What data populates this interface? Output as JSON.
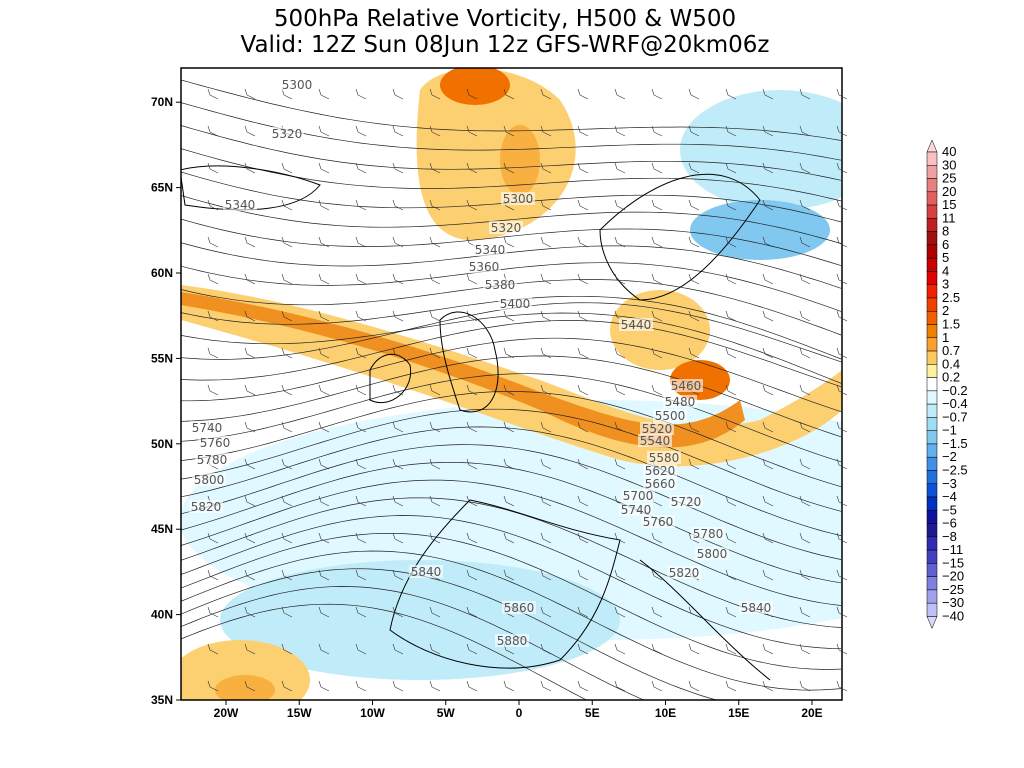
{
  "title": [
    "500hPa Relative Vorticity, H500 & W500",
    "Valid: 12Z Sun 08Jun 12z GFS-WRF@20km06z"
  ],
  "lat_labels": [
    "35N",
    "40N",
    "45N",
    "50N",
    "55N",
    "60N",
    "65N",
    "70N"
  ],
  "lon_labels": [
    "20W",
    "15W",
    "10W",
    "5W",
    "0",
    "5E",
    "10E",
    "15E",
    "20E"
  ],
  "contour_labels": [
    "5300",
    "5320",
    "5340",
    "5300",
    "5320",
    "5340",
    "5360",
    "5380",
    "5400",
    "5440",
    "5460",
    "5480",
    "5500",
    "5520",
    "5540",
    "5580",
    "5620",
    "5660",
    "5700",
    "5720",
    "5740",
    "5760",
    "5780",
    "5800",
    "5820",
    "5840",
    "5740",
    "5760",
    "5780",
    "5800",
    "5820",
    "5840",
    "5860",
    "5880"
  ],
  "colorbar": {
    "labels": [
      "40",
      "30",
      "25",
      "20",
      "15",
      "11",
      "8",
      "6",
      "5",
      "4",
      "3",
      "2.5",
      "2",
      "1.5",
      "1",
      "0.7",
      "0.4",
      "0.2",
      "−0.2",
      "−0.4",
      "−0.7",
      "−1",
      "−1.5",
      "−2",
      "−2.5",
      "−3",
      "−4",
      "−5",
      "−6",
      "−8",
      "−11",
      "−15",
      "−20",
      "−25",
      "−30",
      "−40"
    ],
    "colors": [
      "#fbd8d8",
      "#f8c0c0",
      "#f0a0a0",
      "#e88080",
      "#e06060",
      "#d84040",
      "#c02020",
      "#a01010",
      "#b00000",
      "#c80000",
      "#e00000",
      "#f02000",
      "#f04000",
      "#f06000",
      "#f08000",
      "#f8a030",
      "#fcc860",
      "#fff0a0",
      "#ffffff",
      "#e0f8ff",
      "#c0ecfa",
      "#a0dcf4",
      "#80c8f0",
      "#60b0ec",
      "#4090e8",
      "#2070e0",
      "#1050d8",
      "#0030c0",
      "#1010a0",
      "#201890",
      "#302cb0",
      "#4040c0",
      "#6060d0",
      "#8080e0",
      "#a0a0ec",
      "#c0c0f8",
      "#d8d8fc"
    ]
  }
}
